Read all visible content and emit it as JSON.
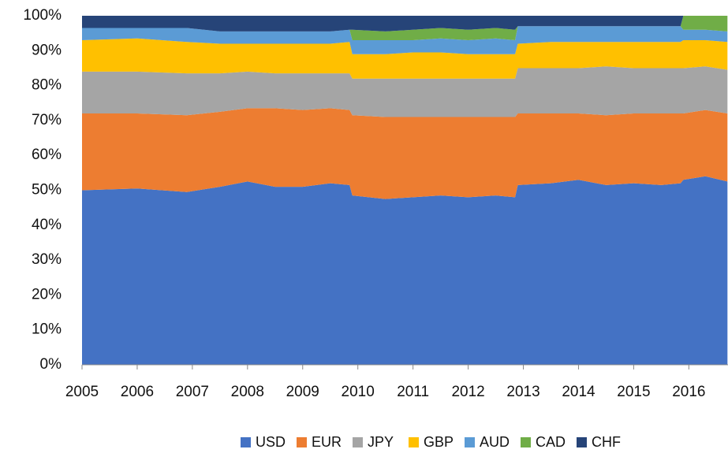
{
  "chart_data": {
    "type": "stacked_area",
    "x": [
      2005,
      2006,
      2006.9,
      2007.5,
      2008,
      2008.5,
      2009,
      2009.5,
      2009.85,
      2009.9,
      2010.5,
      2011,
      2011.5,
      2012,
      2012.5,
      2012.85,
      2012.9,
      2013.5,
      2014,
      2014.5,
      2015,
      2015.5,
      2015.85,
      2015.9,
      2016.3,
      2016.7
    ],
    "series": [
      {
        "name": "USD",
        "color": "#4472c4",
        "values": [
          50,
          50.5,
          49.5,
          51,
          52.5,
          51,
          51,
          52,
          51.5,
          48.5,
          47.5,
          48,
          48.5,
          48,
          48.5,
          48,
          51.5,
          52,
          53,
          51.5,
          52,
          51.5,
          52,
          53,
          54,
          52.5
        ]
      },
      {
        "name": "EUR",
        "color": "#ed7d31",
        "values": [
          22,
          21.5,
          22,
          21.5,
          21,
          22.5,
          22,
          21.5,
          21.5,
          23,
          23.5,
          23,
          22.5,
          23,
          22.5,
          23,
          20.5,
          20,
          19,
          20,
          20,
          20.5,
          20,
          19,
          19,
          19.5
        ]
      },
      {
        "name": "JPY",
        "color": "#a5a5a5",
        "values": [
          12,
          12,
          12,
          11,
          10.5,
          10,
          10.5,
          10,
          10.5,
          10.5,
          11,
          11,
          11,
          11,
          11,
          11,
          13,
          13,
          13,
          14,
          13,
          13,
          13,
          13,
          12.5,
          12.5
        ]
      },
      {
        "name": "GBP",
        "color": "#ffc000",
        "values": [
          9,
          9.5,
          9,
          8.5,
          8,
          8.5,
          8.5,
          8.5,
          9,
          7,
          7,
          7.5,
          7.5,
          7,
          7,
          7,
          7,
          7.5,
          7.5,
          7,
          7.5,
          7.5,
          7.5,
          8,
          7.5,
          8
        ]
      },
      {
        "name": "AUD",
        "color": "#5b9bd5",
        "values": [
          3.5,
          3,
          4,
          3.5,
          3.5,
          3.5,
          3.5,
          3.5,
          3.5,
          4,
          4,
          3.5,
          4,
          4,
          4.5,
          4,
          5,
          4.5,
          4.5,
          4.5,
          4.5,
          4.5,
          4.5,
          3,
          3,
          3
        ]
      },
      {
        "name": "CAD",
        "color": "#70ad47",
        "values": [
          0,
          0,
          0,
          0,
          0,
          0,
          0,
          0,
          0,
          3,
          2.5,
          3,
          3,
          3,
          3,
          3,
          0,
          0,
          0,
          0,
          0,
          0,
          0,
          4,
          4,
          4.5
        ]
      },
      {
        "name": "CHF",
        "color": "#264478",
        "values": [
          3.5,
          3.5,
          3.5,
          4.5,
          4.5,
          4.5,
          4.5,
          4.5,
          4,
          4,
          4.5,
          4,
          3.5,
          4,
          3.5,
          4,
          3,
          3,
          3,
          3,
          3,
          3,
          3,
          0,
          0,
          0
        ]
      }
    ],
    "xlim": [
      2005,
      2016.71
    ],
    "xticks": [
      2005,
      2006,
      2007,
      2008,
      2009,
      2010,
      2011,
      2012,
      2013,
      2014,
      2015,
      2016
    ],
    "ylim": [
      0,
      100
    ],
    "yticks": [
      {
        "value": 0,
        "label": "0%"
      },
      {
        "value": 10,
        "label": "10%"
      },
      {
        "value": 20,
        "label": "20%"
      },
      {
        "value": 30,
        "label": "30%"
      },
      {
        "value": 40,
        "label": "40%"
      },
      {
        "value": 50,
        "label": "50%"
      },
      {
        "value": 60,
        "label": "60%"
      },
      {
        "value": 70,
        "label": "70%"
      },
      {
        "value": 80,
        "label": "80%"
      },
      {
        "value": 90,
        "label": "90%"
      },
      {
        "value": 100,
        "label": "100%"
      }
    ],
    "legend": "bottom"
  }
}
